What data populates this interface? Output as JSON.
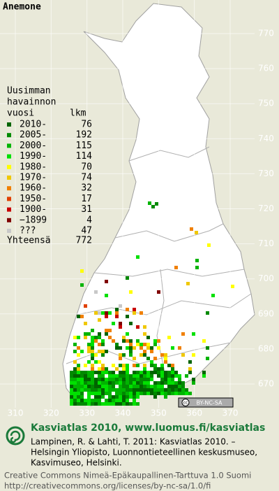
{
  "title": "Anemone",
  "legend": {
    "heading": [
      "Uusimman",
      "havainnon",
      "vuosi"
    ],
    "count_heading": "lkm",
    "rows": [
      {
        "label": "2010-",
        "count": 76,
        "color": "#006400"
      },
      {
        "label": "2005-",
        "count": 192,
        "color": "#008a00"
      },
      {
        "label": "2000-",
        "count": 115,
        "color": "#00b400"
      },
      {
        "label": "1990-",
        "count": 114,
        "color": "#00e000"
      },
      {
        "label": "1980-",
        "count": 70,
        "color": "#ffff00"
      },
      {
        "label": "1970-",
        "count": 74,
        "color": "#f0c800"
      },
      {
        "label": "1960-",
        "count": 32,
        "color": "#f08000"
      },
      {
        "label": "1950-",
        "count": 17,
        "color": "#e04000"
      },
      {
        "label": "1900-",
        "count": 31,
        "color": "#c80000"
      },
      {
        "label": "−1899",
        "count": 4,
        "color": "#800000"
      },
      {
        "label": "???",
        "count": 47,
        "color": "#c8c8c8"
      }
    ],
    "total_label": "Yhteensä",
    "total": 772
  },
  "map": {
    "yticks": [
      770,
      760,
      750,
      740,
      730,
      720,
      710,
      700,
      690,
      680,
      670
    ],
    "xticks": [
      310,
      320,
      330,
      340,
      350,
      360,
      370
    ],
    "license_badge": "BY-NC-SA"
  },
  "footer": {
    "heading": "Kasviatlas 2010, www.luomus.fi/kasviatlas",
    "citation": [
      "Lampinen, R. & Lahti, T. 2011: Kasviatlas 2010. –",
      "Helsingin Yliopisto, Luonnontieteellinen keskusmuseo,",
      "Kasvimuseo, Helsinki."
    ],
    "license": [
      "Creative Commons Nimeä-Epäkaupallinen-Tarttuva 1.0 Suomi",
      "http://creativecommons.org/licenses/by-nc-sa/1.0/fi"
    ]
  }
}
